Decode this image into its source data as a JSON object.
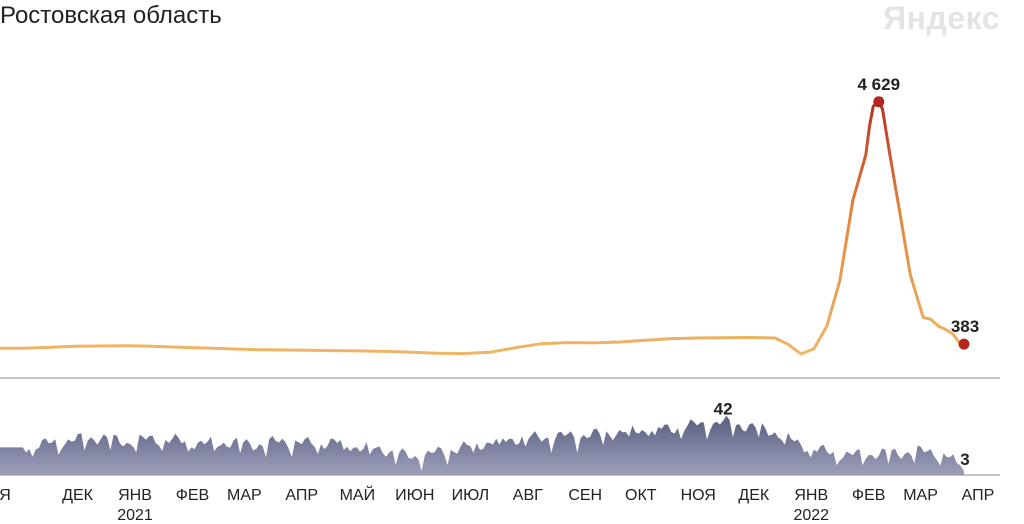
{
  "header": {
    "title": "Ростовская область",
    "brand": "Яндекс"
  },
  "chart_data": [
    {
      "type": "line",
      "title": "",
      "xlabel": "",
      "ylabel": "",
      "ylim": [
        0,
        4800
      ],
      "grid": false,
      "x": [
        "2020-11-09",
        "2020-11-23",
        "2020-12-07",
        "2020-12-21",
        "2021-01-04",
        "2021-01-18",
        "2021-02-01",
        "2021-02-15",
        "2021-03-01",
        "2021-03-15",
        "2021-03-29",
        "2021-04-12",
        "2021-04-26",
        "2021-05-10",
        "2021-05-24",
        "2021-06-07",
        "2021-06-21",
        "2021-07-05",
        "2021-07-19",
        "2021-08-02",
        "2021-08-16",
        "2021-08-30",
        "2021-09-13",
        "2021-09-27",
        "2021-10-11",
        "2021-10-25",
        "2021-11-08",
        "2021-11-22",
        "2021-12-06",
        "2021-12-20",
        "2021-12-27",
        "2022-01-03",
        "2022-01-10",
        "2022-01-17",
        "2022-01-24",
        "2022-01-31",
        "2022-02-07",
        "2022-02-09",
        "2022-02-11",
        "2022-02-14",
        "2022-02-16",
        "2022-02-20",
        "2022-02-25",
        "2022-03-03",
        "2022-03-10",
        "2022-03-14",
        "2022-03-18",
        "2022-03-22",
        "2022-03-26",
        "2022-03-29",
        "2022-04-01"
      ],
      "series": [
        {
          "values": [
            310,
            325,
            345,
            350,
            355,
            345,
            330,
            315,
            300,
            285,
            280,
            275,
            270,
            265,
            255,
            240,
            225,
            218,
            240,
            320,
            390,
            410,
            405,
            420,
            450,
            480,
            490,
            495,
            500,
            490,
            380,
            210,
            300,
            700,
            1500,
            2900,
            3700,
            4200,
            4550,
            4629,
            4500,
            3700,
            2750,
            1600,
            850,
            820,
            700,
            640,
            560,
            430,
            383
          ]
        }
      ],
      "annotations": [
        {
          "label": "4 629",
          "x": "2022-02-14",
          "y": 4629
        },
        {
          "label": "383",
          "x": "2022-04-01",
          "y": 383
        }
      ]
    },
    {
      "type": "area",
      "title": "",
      "xlabel": "",
      "ylabel": "",
      "ylim": [
        0,
        50
      ],
      "grid": false,
      "x": [
        "2020-11-09",
        "2020-11-23",
        "2020-12-07",
        "2020-12-21",
        "2021-01-04",
        "2021-01-18",
        "2021-02-01",
        "2021-02-15",
        "2021-03-01",
        "2021-03-15",
        "2021-03-29",
        "2021-04-12",
        "2021-04-26",
        "2021-05-10",
        "2021-05-24",
        "2021-06-07",
        "2021-06-21",
        "2021-07-05",
        "2021-07-19",
        "2021-08-02",
        "2021-08-16",
        "2021-08-30",
        "2021-09-13",
        "2021-09-27",
        "2021-10-11",
        "2021-10-25",
        "2021-11-08",
        "2021-11-22",
        "2021-12-06",
        "2021-12-20",
        "2022-01-03",
        "2022-01-17",
        "2022-01-31",
        "2022-02-14",
        "2022-02-28",
        "2022-03-14",
        "2022-03-28",
        "2022-04-01"
      ],
      "series": [
        {
          "values": [
            22,
            25,
            28,
            30,
            26,
            29,
            27,
            25,
            26,
            24,
            27,
            25,
            26,
            22,
            20,
            14,
            18,
            22,
            26,
            29,
            30,
            31,
            32,
            34,
            36,
            37,
            40,
            42,
            39,
            34,
            24,
            18,
            16,
            17,
            18,
            19,
            12,
            3
          ]
        }
      ],
      "annotations": [
        {
          "label": "42",
          "x": "2021-11-22",
          "y": 42
        },
        {
          "label": "3",
          "x": "2022-04-01",
          "y": 3
        }
      ]
    }
  ],
  "x_axis": {
    "ticks": [
      {
        "label": "Я",
        "date": "2020-11-01"
      },
      {
        "label": "ДЕК",
        "date": "2020-12-01"
      },
      {
        "label": "ЯНВ",
        "date": "2021-01-01",
        "year": "2021"
      },
      {
        "label": "ФЕВ",
        "date": "2021-02-01"
      },
      {
        "label": "МАР",
        "date": "2021-03-01"
      },
      {
        "label": "АПР",
        "date": "2021-04-01"
      },
      {
        "label": "МАЙ",
        "date": "2021-05-01"
      },
      {
        "label": "ИЮН",
        "date": "2021-06-01"
      },
      {
        "label": "ИЮЛ",
        "date": "2021-07-01"
      },
      {
        "label": "АВГ",
        "date": "2021-08-01"
      },
      {
        "label": "СЕН",
        "date": "2021-09-01"
      },
      {
        "label": "ОКТ",
        "date": "2021-10-01"
      },
      {
        "label": "НОЯ",
        "date": "2021-11-01"
      },
      {
        "label": "ДЕК",
        "date": "2021-12-01"
      },
      {
        "label": "ЯНВ",
        "date": "2022-01-01",
        "year": "2022"
      },
      {
        "label": "ФЕВ",
        "date": "2022-02-01"
      },
      {
        "label": "МАР",
        "date": "2022-03-01"
      },
      {
        "label": "АПР",
        "date": "2022-04-01"
      }
    ]
  },
  "colors": {
    "line_low": "#f0bb6a",
    "line_mid": "#e2883e",
    "line_high": "#b3261e",
    "marker": "#b3261e",
    "area_fill": "#5e6283",
    "area_fill_light": "#9ca0bb",
    "baseline": "#888888",
    "tick_text": "#222222"
  }
}
